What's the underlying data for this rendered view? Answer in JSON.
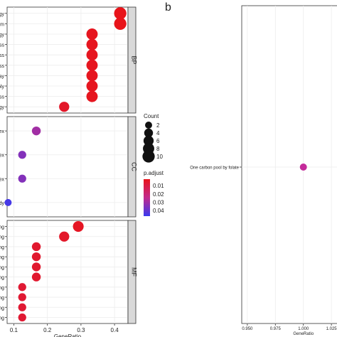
{
  "panel_b_label": "b",
  "chart_data": [
    {
      "type": "scatter",
      "panel": "a",
      "xlabel": "GeneRatio",
      "x_ticks": [
        "0.1",
        "0.2",
        "0.3",
        "0.4"
      ],
      "xlim": [
        0.08,
        0.44
      ],
      "facets": [
        {
          "name": "BP",
          "labels": [
            "agy",
            "lism",
            "agy",
            "ness",
            "ness",
            "ness",
            "way",
            "nbly",
            "ness",
            "agy"
          ],
          "x": [
            0.417,
            0.417,
            0.333,
            0.333,
            0.333,
            0.333,
            0.333,
            0.333,
            0.333,
            0.25
          ],
          "count": [
            10,
            10,
            8,
            8,
            8,
            8,
            8,
            8,
            8,
            6
          ],
          "p_adjust": [
            0.002,
            0.002,
            0.003,
            0.003,
            0.003,
            0.003,
            0.003,
            0.003,
            0.003,
            0.005
          ]
        },
        {
          "name": "CC",
          "labels": [
            "plex",
            "plex",
            "plex",
            "body"
          ],
          "x": [
            0.167,
            0.125,
            0.125,
            0.083
          ],
          "count": [
            4,
            3,
            3,
            2
          ],
          "p_adjust": [
            0.03,
            0.035,
            0.035,
            0.045
          ]
        },
        {
          "name": "MF",
          "labels": [
            "lling",
            "lling",
            "lling",
            "lling",
            "lling",
            "lling",
            "lling",
            "lling",
            "lling",
            "lling"
          ],
          "x": [
            0.292,
            0.25,
            0.167,
            0.167,
            0.167,
            0.167,
            0.125,
            0.125,
            0.125,
            0.125
          ],
          "count": [
            7,
            6,
            4,
            4,
            4,
            4,
            3,
            3,
            3,
            3
          ],
          "p_adjust": [
            0.004,
            0.005,
            0.006,
            0.006,
            0.006,
            0.006,
            0.007,
            0.007,
            0.007,
            0.007
          ]
        }
      ],
      "legend_count": {
        "title": "Count",
        "labels": [
          "2",
          "4",
          "6",
          "8",
          "10"
        ],
        "values": [
          2,
          4,
          6,
          8,
          10
        ]
      },
      "legend_color": {
        "title": "p.adjust",
        "labels": [
          "0.01",
          "0.02",
          "0.03",
          "0.04"
        ],
        "values": [
          0.01,
          0.02,
          0.03,
          0.04
        ],
        "range": [
          0.002,
          0.047
        ],
        "colors": {
          "low": "#e8141a",
          "mid": "#c22a8c",
          "high": "#3a3aef"
        }
      },
      "grid": true,
      "strip_color": "#d9d9d9"
    },
    {
      "type": "scatter",
      "panel": "b",
      "xlabel": "GeneRatio",
      "x_ticks": [
        "0.950",
        "0.975",
        "1.000",
        "1.025"
      ],
      "tick_values": [
        0.95,
        0.975,
        1.0,
        1.025
      ],
      "xlim": [
        0.945,
        1.03
      ],
      "labels": [
        "One carbon pool by folate"
      ],
      "x": [
        1.0
      ],
      "count": [
        1
      ],
      "p_adjust": [
        0.02
      ],
      "point_color": "#c42a9a",
      "grid": true
    }
  ]
}
